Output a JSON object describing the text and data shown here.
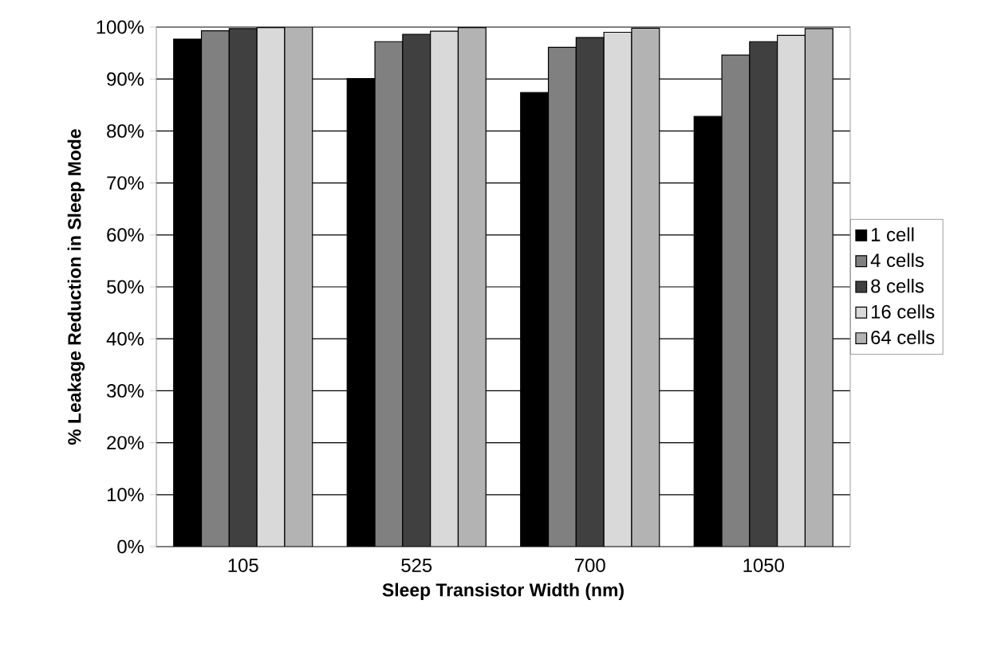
{
  "chart_data": {
    "type": "bar",
    "xlabel": "Sleep Transistor Width (nm)",
    "ylabel": "% Leakage Reduction in Sleep Mode",
    "categories": [
      "105",
      "525",
      "700",
      "1050"
    ],
    "series": [
      {
        "name": "1 cell",
        "color": "#000000",
        "values": [
          97.7,
          90.1,
          87.4,
          82.8
        ]
      },
      {
        "name": "4 cells",
        "color": "#808080",
        "values": [
          99.3,
          97.2,
          96.1,
          94.6
        ]
      },
      {
        "name": "8 cells",
        "color": "#404040",
        "values": [
          99.7,
          98.6,
          98.0,
          97.2
        ]
      },
      {
        "name": "16 cells",
        "color": "#d9d9d9",
        "values": [
          99.9,
          99.2,
          99.0,
          98.4
        ]
      },
      {
        "name": "64 cells",
        "color": "#b3b3b3",
        "values": [
          100,
          99.9,
          99.8,
          99.7
        ]
      }
    ],
    "ylim": [
      0,
      100
    ],
    "yticks": [
      {
        "value": 0,
        "label": "0%"
      },
      {
        "value": 10,
        "label": "10%"
      },
      {
        "value": 20,
        "label": "20%"
      },
      {
        "value": 30,
        "label": "30%"
      },
      {
        "value": 40,
        "label": "40%"
      },
      {
        "value": 50,
        "label": "50%"
      },
      {
        "value": 60,
        "label": "60%"
      },
      {
        "value": 70,
        "label": "70%"
      },
      {
        "value": 80,
        "label": "80%"
      },
      {
        "value": 90,
        "label": "90%"
      },
      {
        "value": 100,
        "label": "100%"
      }
    ],
    "grid": "y",
    "legend": "right"
  }
}
